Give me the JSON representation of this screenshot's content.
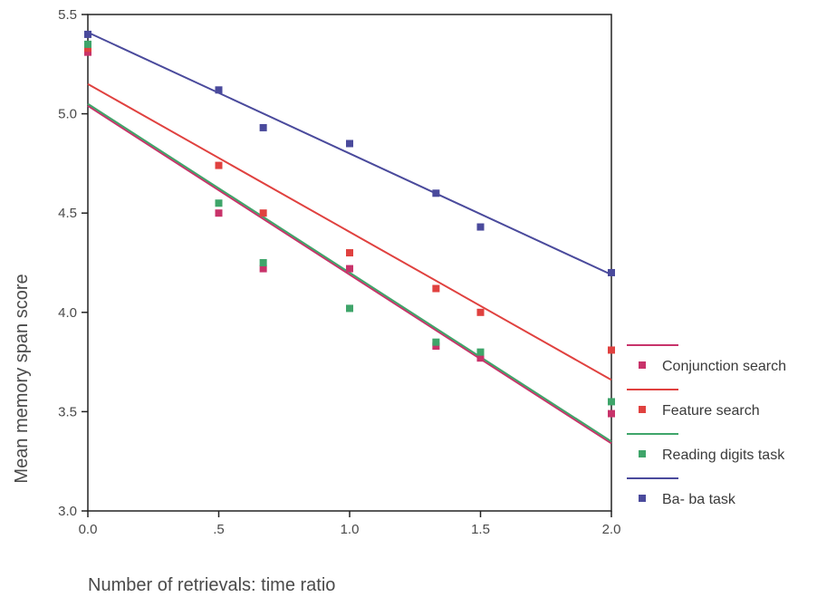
{
  "chart_data": {
    "type": "scatter",
    "title": "",
    "xlabel": "Number of retrievals: time ratio",
    "ylabel": "Mean memory span score",
    "xlim": [
      0,
      2
    ],
    "ylim": [
      3,
      5.5
    ],
    "grid": false,
    "legend_position": "right",
    "x_ticks": [
      {
        "value": 0,
        "label": "0.0"
      },
      {
        "value": 0.5,
        "label": ".5"
      },
      {
        "value": 1,
        "label": "1.0"
      },
      {
        "value": 1.5,
        "label": "1.5"
      },
      {
        "value": 2,
        "label": "2.0"
      }
    ],
    "y_ticks": [
      {
        "value": 3,
        "label": "3.0"
      },
      {
        "value": 3.5,
        "label": "3.5"
      },
      {
        "value": 4,
        "label": "4.0"
      },
      {
        "value": 4.5,
        "label": "4.5"
      },
      {
        "value": 5,
        "label": "5.0"
      },
      {
        "value": 5.5,
        "label": "5.5"
      }
    ],
    "series": [
      {
        "name": "Conjunction search",
        "color": "#c8336a",
        "marker": "square",
        "points": [
          {
            "x": 0,
            "y": 5.31
          },
          {
            "x": 0.5,
            "y": 4.5
          },
          {
            "x": 0.67,
            "y": 4.22
          },
          {
            "x": 1,
            "y": 4.22
          },
          {
            "x": 1.33,
            "y": 3.83
          },
          {
            "x": 1.5,
            "y": 3.77
          },
          {
            "x": 2,
            "y": 3.49
          }
        ],
        "trend": {
          "x": [
            0,
            2
          ],
          "y": [
            5.04,
            3.34
          ]
        }
      },
      {
        "name": "Feature search",
        "color": "#e0413f",
        "marker": "square",
        "points": [
          {
            "x": 0,
            "y": 5.33
          },
          {
            "x": 0.5,
            "y": 4.74
          },
          {
            "x": 0.67,
            "y": 4.5
          },
          {
            "x": 1,
            "y": 4.3
          },
          {
            "x": 1.33,
            "y": 4.12
          },
          {
            "x": 1.5,
            "y": 4.0
          },
          {
            "x": 2,
            "y": 3.81
          }
        ],
        "trend": {
          "x": [
            0,
            2
          ],
          "y": [
            5.15,
            3.66
          ]
        }
      },
      {
        "name": "Reading digits task",
        "color": "#3fa56a",
        "marker": "square",
        "points": [
          {
            "x": 0,
            "y": 5.35
          },
          {
            "x": 0.5,
            "y": 4.55
          },
          {
            "x": 0.67,
            "y": 4.25
          },
          {
            "x": 1,
            "y": 4.02
          },
          {
            "x": 1.33,
            "y": 3.85
          },
          {
            "x": 1.5,
            "y": 3.8
          },
          {
            "x": 2,
            "y": 3.55
          }
        ],
        "trend": {
          "x": [
            0,
            2
          ],
          "y": [
            5.05,
            3.35
          ]
        }
      },
      {
        "name": "Ba- ba task",
        "color": "#4a4a9c",
        "marker": "square",
        "points": [
          {
            "x": 0,
            "y": 5.4
          },
          {
            "x": 0.5,
            "y": 5.12
          },
          {
            "x": 0.67,
            "y": 4.93
          },
          {
            "x": 1,
            "y": 4.85
          },
          {
            "x": 1.33,
            "y": 4.6
          },
          {
            "x": 1.5,
            "y": 4.43
          },
          {
            "x": 2,
            "y": 4.2
          }
        ],
        "trend": {
          "x": [
            0,
            2
          ],
          "y": [
            5.41,
            4.19
          ]
        }
      }
    ]
  }
}
